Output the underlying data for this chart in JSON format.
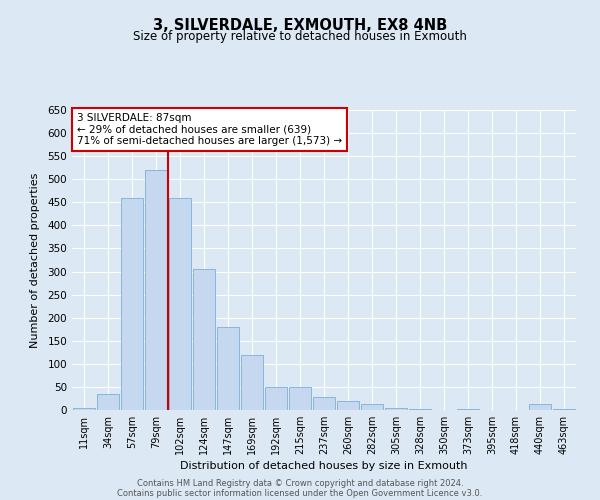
{
  "title": "3, SILVERDALE, EXMOUTH, EX8 4NB",
  "subtitle": "Size of property relative to detached houses in Exmouth",
  "xlabel": "Distribution of detached houses by size in Exmouth",
  "ylabel": "Number of detached properties",
  "bar_labels": [
    "11sqm",
    "34sqm",
    "57sqm",
    "79sqm",
    "102sqm",
    "124sqm",
    "147sqm",
    "169sqm",
    "192sqm",
    "215sqm",
    "237sqm",
    "260sqm",
    "282sqm",
    "305sqm",
    "328sqm",
    "350sqm",
    "373sqm",
    "395sqm",
    "418sqm",
    "440sqm",
    "463sqm"
  ],
  "bar_values": [
    5,
    35,
    460,
    520,
    460,
    305,
    180,
    120,
    50,
    50,
    28,
    20,
    13,
    5,
    3,
    0,
    2,
    0,
    0,
    12,
    3
  ],
  "bar_color": "#c5d8f0",
  "bar_edge_color": "#7bafd4",
  "background_color": "#dce9f5",
  "grid_color": "#ffffff",
  "ylim": [
    0,
    650
  ],
  "yticks": [
    0,
    50,
    100,
    150,
    200,
    250,
    300,
    350,
    400,
    450,
    500,
    550,
    600,
    650
  ],
  "vline_color": "#cc0000",
  "vline_x_index": 3,
  "annotation_title": "3 SILVERDALE: 87sqm",
  "annotation_line1": "← 29% of detached houses are smaller (639)",
  "annotation_line2": "71% of semi-detached houses are larger (1,573) →",
  "annotation_box_edge_color": "#cc0000",
  "footer_line1": "Contains HM Land Registry data © Crown copyright and database right 2024.",
  "footer_line2": "Contains public sector information licensed under the Open Government Licence v3.0."
}
